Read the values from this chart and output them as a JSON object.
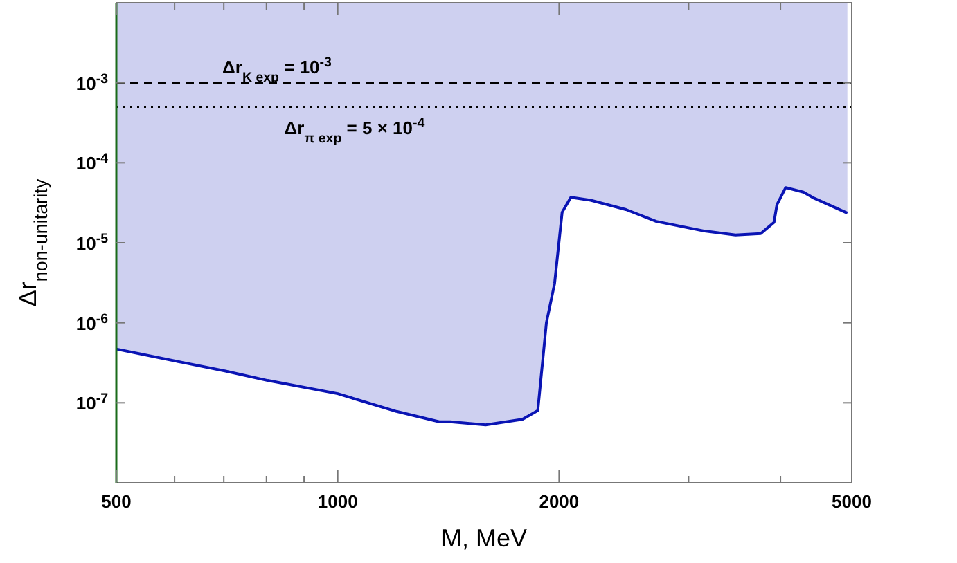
{
  "chart_data": {
    "type": "line",
    "xlabel": "M, MeV",
    "ylabel": "Δr$_{non-unitarity}$",
    "log": "xy",
    "grid": false,
    "marker": "none",
    "line_style": "solid",
    "xlim": [
      500,
      5000
    ],
    "ylim": [
      1e-08,
      0.01
    ],
    "xticks": [
      500,
      {
        "value": 600,
        "label": null
      },
      {
        "value": 700,
        "label": null
      },
      {
        "value": 800,
        "label": null
      },
      {
        "value": 900,
        "label": null
      },
      1000,
      2000,
      {
        "value": 3000,
        "label": null
      },
      {
        "value": 4000,
        "label": null
      },
      5000
    ],
    "yticks": [
      {
        "value": 1e-07,
        "label": "10$^{-7}$"
      },
      {
        "value": 1e-06,
        "label": "10$^{-6}$"
      },
      {
        "value": 1e-05,
        "label": "10$^{-5}$"
      },
      {
        "value": 0.0001,
        "label": "10$^{-4}$"
      },
      {
        "value": 0.001,
        "label": "10$^{-3}$"
      }
    ],
    "ref_lines": [
      {
        "axis": "y",
        "value": 0.001,
        "line_style": "dashed",
        "color": "#000000"
      },
      {
        "axis": "y",
        "value": 0.0005,
        "line_style": "dotted",
        "color": "#000000"
      }
    ],
    "annotations": [
      "Δr$_{K exp}$ = 10$^{-3}$",
      "Δr$_{π exp}$ = 5 × 10$^{-4}$"
    ],
    "series": [
      {
        "color": "#0a14b4",
        "x": [
          500,
          614,
          702,
          803,
          1000,
          1202,
          1374,
          1422,
          1589,
          1783,
          1871,
          1922,
          1972,
          2019,
          2075,
          2208,
          2466,
          2712,
          3155,
          3475,
          3760,
          3920,
          3956,
          4066,
          4297,
          4447,
          4932
        ],
        "values": [
          4.7e-07,
          3.2e-07,
          2.5e-07,
          1.9e-07,
          1.3e-07,
          7.8e-08,
          5.8e-08,
          5.8e-08,
          5.3e-08,
          6.2e-08,
          8e-08,
          1e-06,
          3.1e-06,
          2.4e-05,
          3.7e-05,
          3.4e-05,
          2.6e-05,
          1.85e-05,
          1.4e-05,
          1.25e-05,
          1.3e-05,
          1.8e-05,
          3e-05,
          4.9e-05,
          4.3e-05,
          3.6e-05,
          2.35e-05
        ],
        "lower": [
          4.7e-07,
          3.2e-07,
          2.5e-07,
          1.9e-07,
          1.3e-07,
          7.8e-08,
          5.8e-08,
          5.8e-08,
          5.3e-08,
          6.2e-08,
          8e-08,
          1e-06,
          3.1e-06,
          2.4e-05,
          3.7e-05,
          3.4e-05,
          2.6e-05,
          1.85e-05,
          1.4e-05,
          1.25e-05,
          1.3e-05,
          1.8e-05,
          3e-05,
          4.9e-05,
          4.3e-05,
          3.6e-05,
          2.35e-05
        ],
        "upper": [
          0.01,
          0.01,
          0.01,
          0.01,
          0.01,
          0.01,
          0.01,
          0.01,
          0.01,
          0.01,
          0.01,
          0.01,
          0.01,
          0.01,
          0.01,
          0.01,
          0.01,
          0.01,
          0.01,
          0.01,
          0.01,
          0.01,
          0.01,
          0.01,
          0.01,
          0.01,
          0.01
        ]
      }
    ]
  }
}
